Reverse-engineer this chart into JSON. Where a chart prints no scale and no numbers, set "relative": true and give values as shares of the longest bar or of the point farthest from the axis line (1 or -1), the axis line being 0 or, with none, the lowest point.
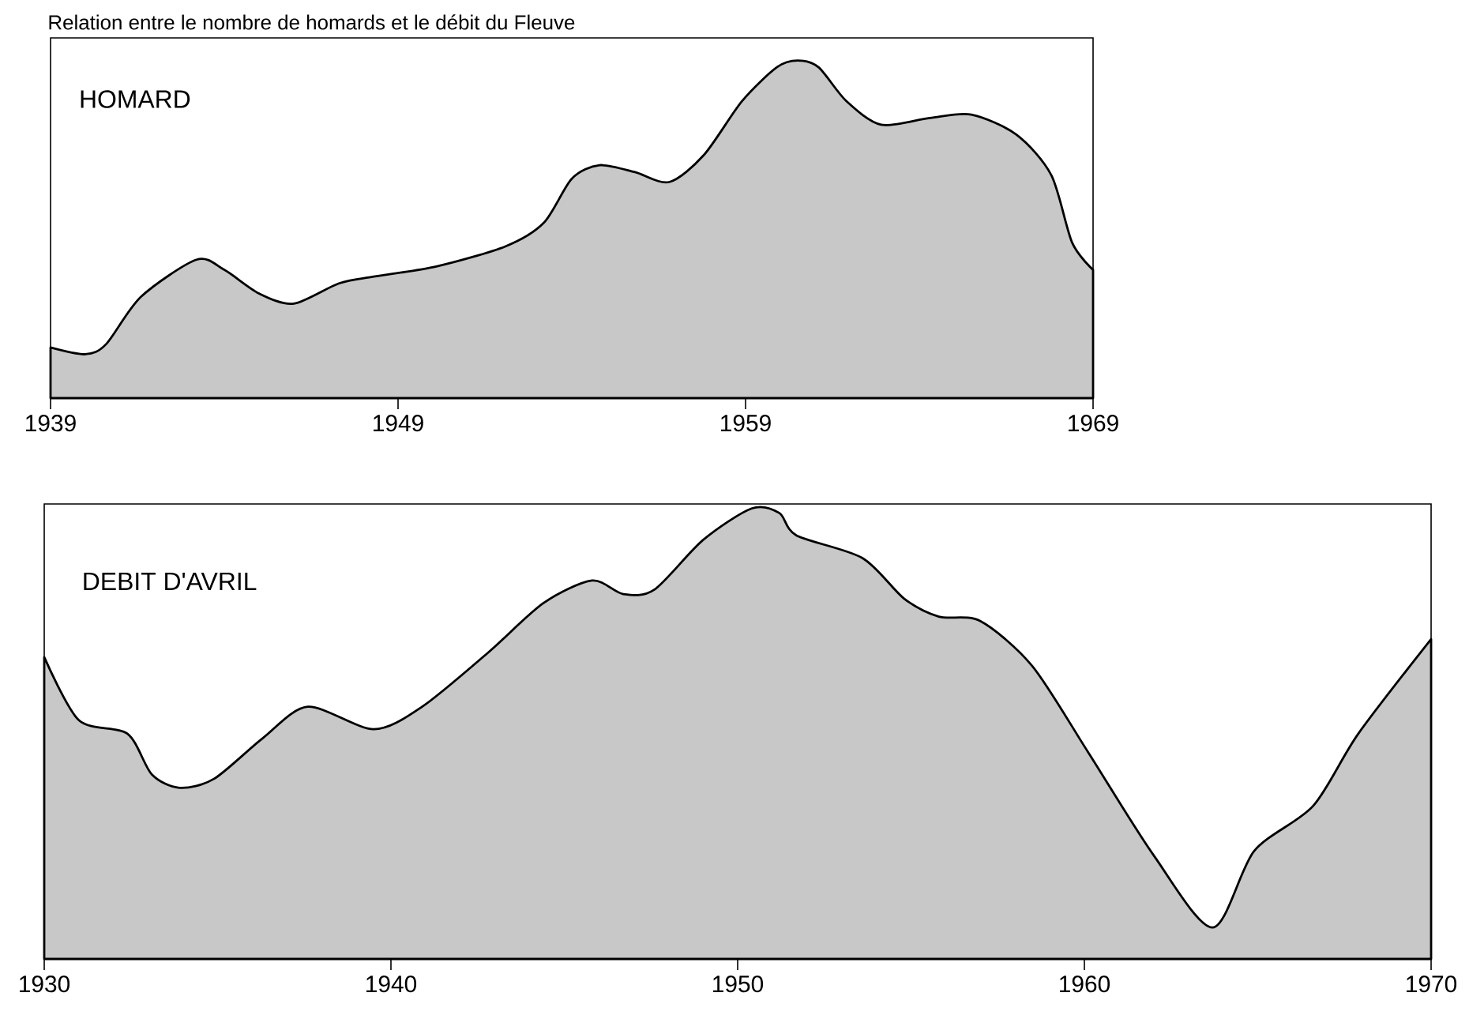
{
  "chart_data": [
    {
      "type": "area",
      "title": "Relation entre le nombre de homards et le débit du Fleuve",
      "relative": true,
      "tick_labels": "x",
      "xlim": [
        1939,
        1969
      ],
      "xticks": [
        1939,
        1949,
        1959,
        1969
      ],
      "x": [
        1939,
        1940,
        1940.6,
        1941.6,
        1943.2,
        1944,
        1945,
        1946,
        1947.3,
        1948.3,
        1950.1,
        1952.1,
        1953.2,
        1954,
        1954.8,
        1955.8,
        1956.8,
        1957.8,
        1958.9,
        1959.9,
        1960.5,
        1961.1,
        1961.9,
        1962.9,
        1964.3,
        1965.5,
        1966.8,
        1967.8,
        1968.4,
        1969
      ],
      "series": [
        {
          "name": "HOMARD",
          "color": "#c8c8c8",
          "values": [
            0.15,
            0.13,
            0.16,
            0.3,
            0.41,
            0.38,
            0.31,
            0.28,
            0.34,
            0.36,
            0.39,
            0.45,
            0.52,
            0.65,
            0.69,
            0.67,
            0.64,
            0.72,
            0.88,
            0.98,
            1.0,
            0.98,
            0.88,
            0.81,
            0.83,
            0.84,
            0.78,
            0.66,
            0.46,
            0.38
          ]
        }
      ]
    },
    {
      "type": "area",
      "relative": true,
      "tick_labels": "x",
      "xlim": [
        1930,
        1970
      ],
      "xticks": [
        1930,
        1940,
        1950,
        1960,
        1970
      ],
      "x": [
        1930,
        1931,
        1932.4,
        1933.1,
        1933.9,
        1934.9,
        1936.3,
        1937.6,
        1939.5,
        1940.9,
        1942.8,
        1944.4,
        1945.8,
        1946.7,
        1947.6,
        1949,
        1950.4,
        1951.2,
        1951.7,
        1953.6,
        1954.8,
        1955.8,
        1957,
        1958.5,
        1960.1,
        1962,
        1963.7,
        1964.9,
        1966.6,
        1967.9,
        1970
      ],
      "series": [
        {
          "name": "DEBIT D'AVRIL",
          "color": "#c8c8c8",
          "values": [
            0.67,
            0.53,
            0.5,
            0.41,
            0.38,
            0.4,
            0.49,
            0.56,
            0.51,
            0.56,
            0.68,
            0.79,
            0.84,
            0.81,
            0.82,
            0.93,
            1.0,
            0.99,
            0.94,
            0.89,
            0.8,
            0.76,
            0.75,
            0.65,
            0.46,
            0.23,
            0.07,
            0.24,
            0.34,
            0.5,
            0.71
          ]
        }
      ]
    }
  ]
}
